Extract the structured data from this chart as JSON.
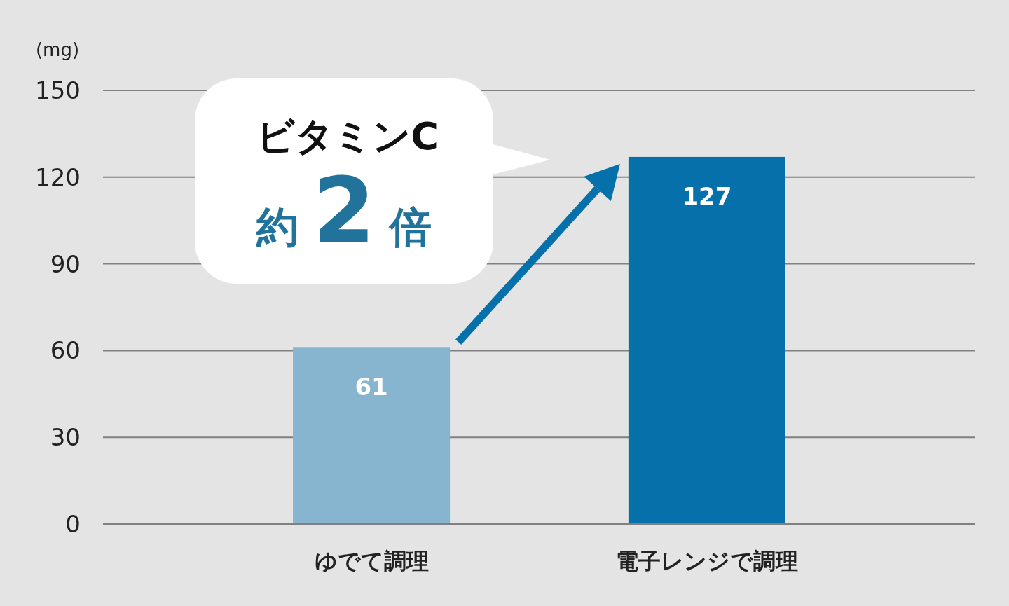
{
  "chart_data": {
    "type": "bar",
    "ylabel": "(mg)",
    "categories": [
      "ゆでて調理",
      "電子レンジで調理"
    ],
    "values": [
      61,
      127
    ],
    "colors": [
      "#87b4cf",
      "#0570a9"
    ],
    "ylim": [
      0,
      150
    ],
    "yticks": [
      0,
      30,
      60,
      90,
      120,
      150
    ],
    "grid": "y",
    "data_labels": true,
    "annotations": [
      "ビタミンC",
      "約 2 倍"
    ]
  }
}
